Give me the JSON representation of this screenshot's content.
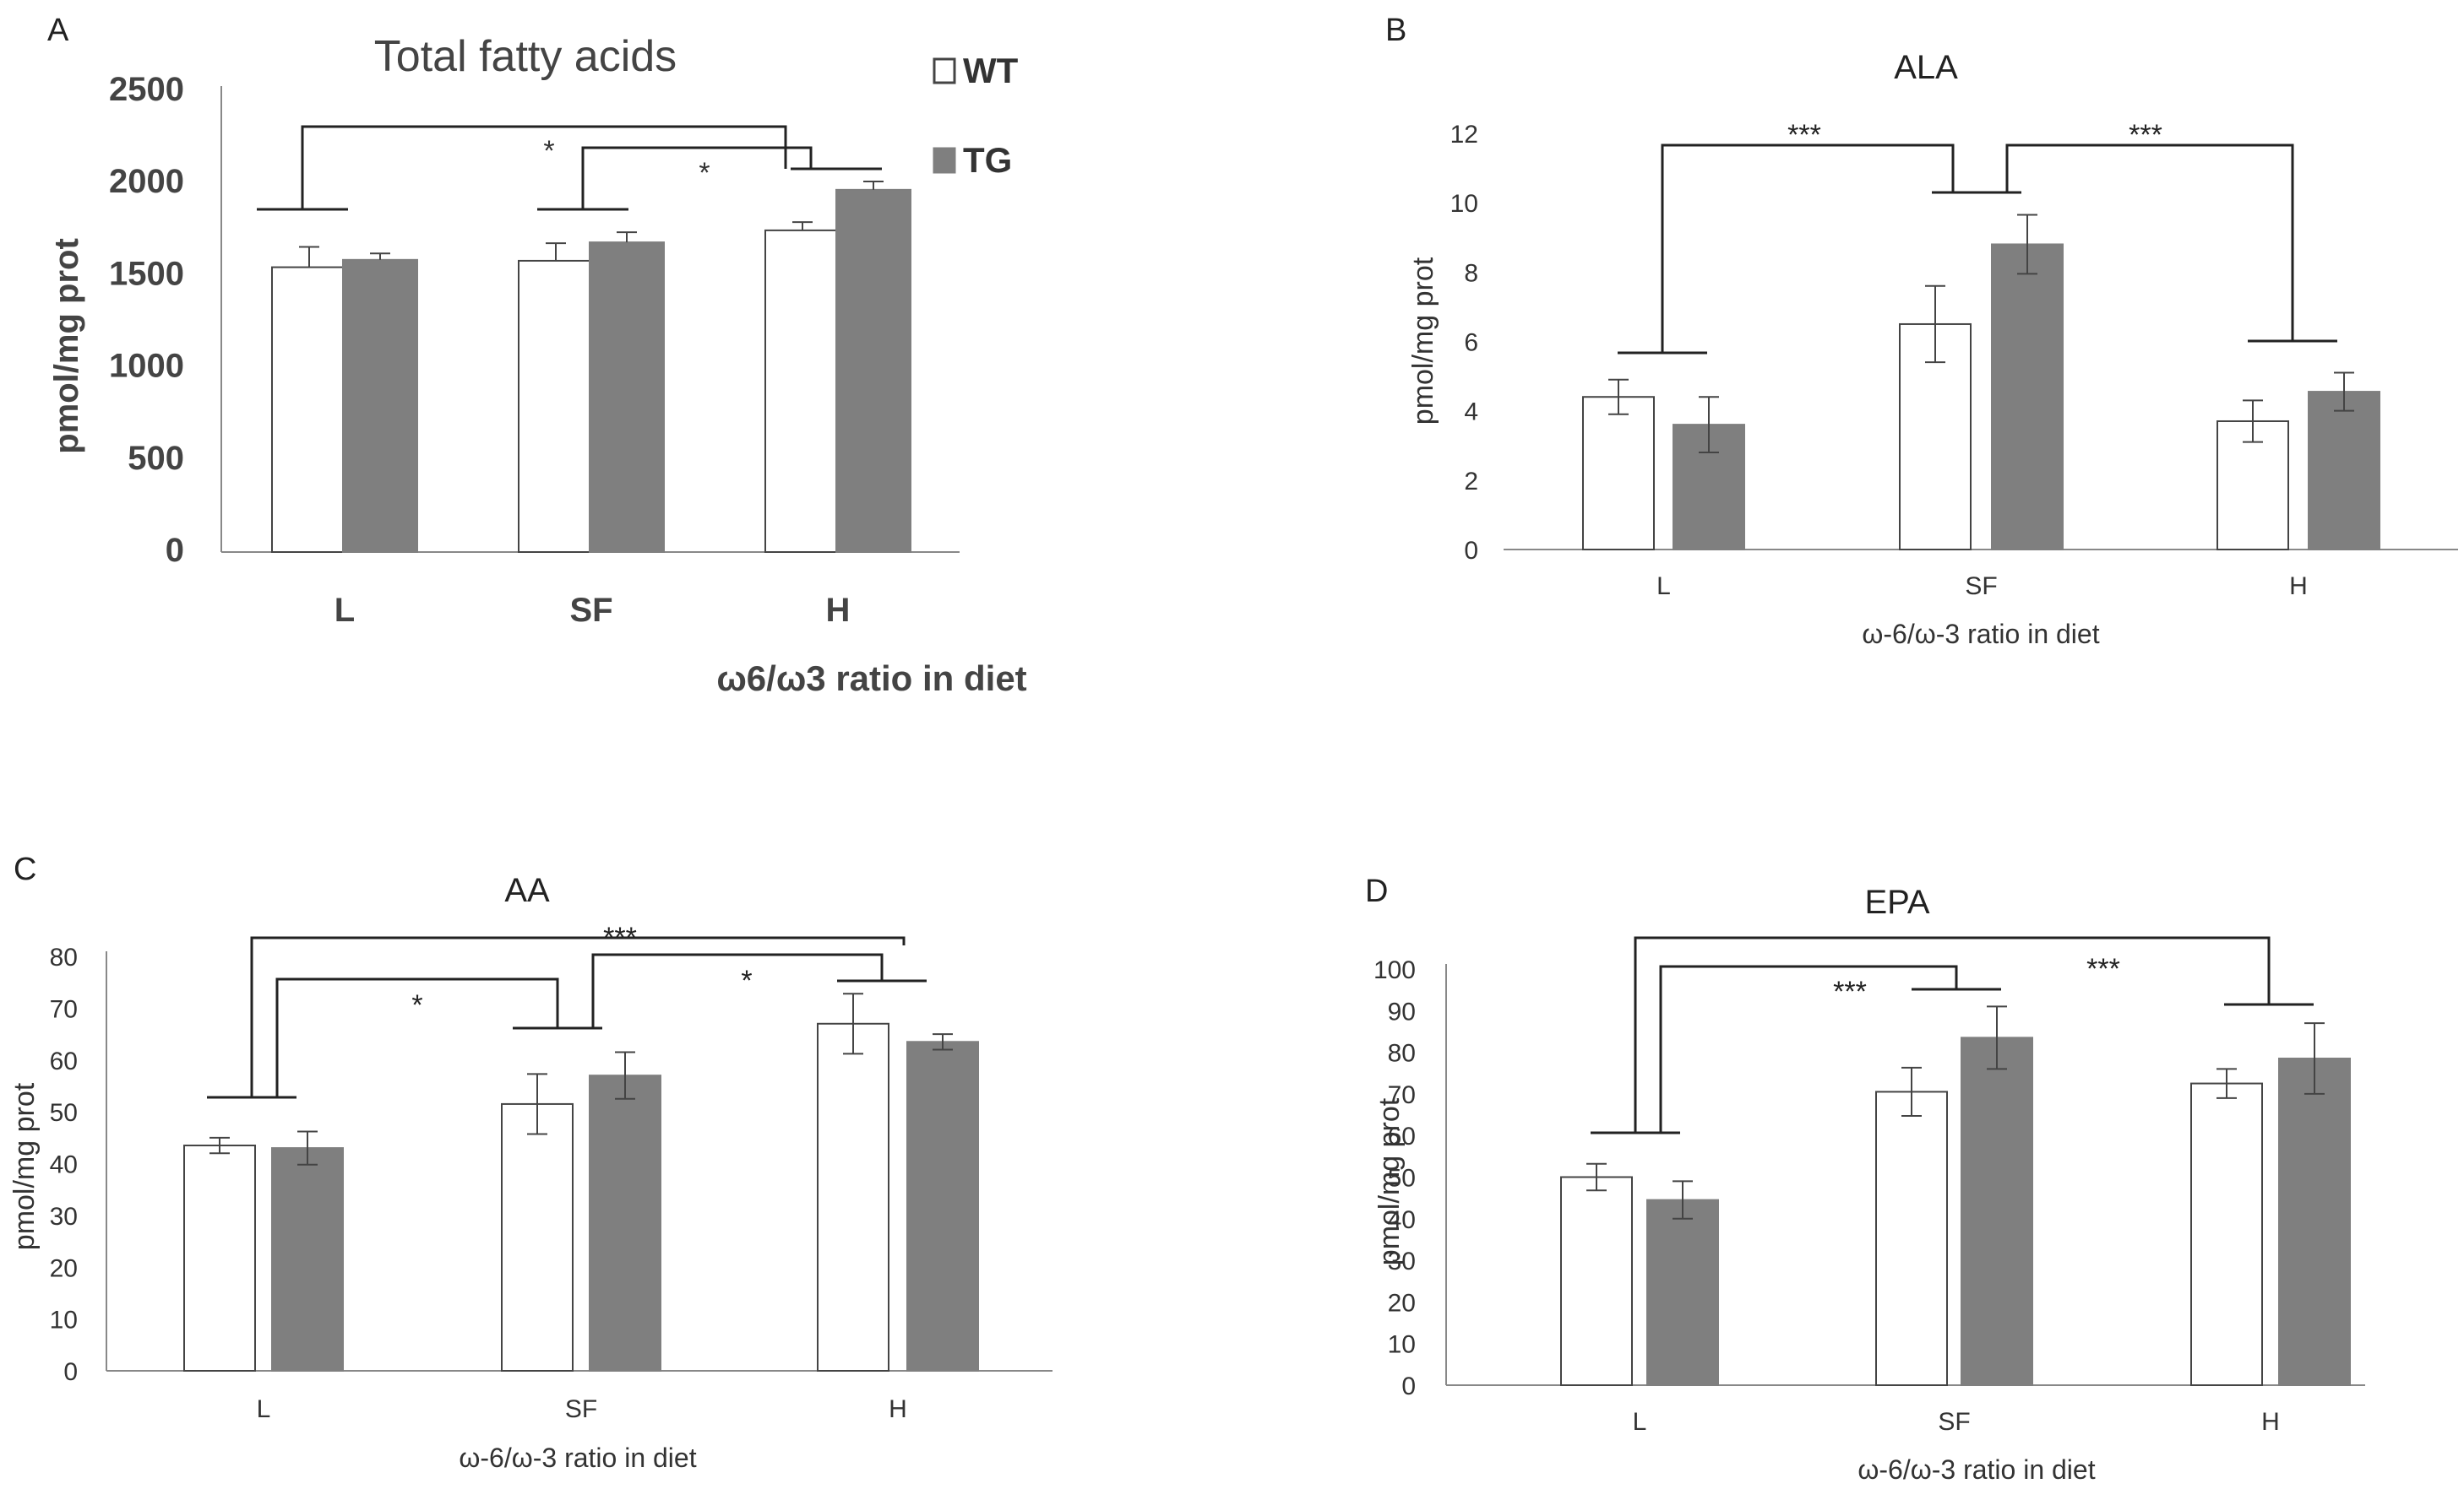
{
  "legend": [
    {
      "label": "WT",
      "color": "#ffffff"
    },
    {
      "label": "TG",
      "color": "#7f7f7f"
    }
  ],
  "colors": {
    "WT": "#ffffff",
    "TG": "#7f7f7f",
    "outline": "#444444",
    "axis": "#888888"
  },
  "chart_data": [
    {
      "panel": "A",
      "type": "bar",
      "title": "Total fatty acids",
      "xlabel": "ω6/ω3 ratio in diet",
      "ylabel": "pmol/mg prot",
      "categories": [
        "L",
        "SF",
        "H"
      ],
      "ylim": [
        0,
        2500
      ],
      "yticks": [
        0,
        500,
        1000,
        1500,
        2000,
        2500
      ],
      "series": [
        {
          "name": "WT",
          "values": [
            1545,
            1580,
            1745
          ],
          "errors": [
            110,
            95,
            45
          ]
        },
        {
          "name": "TG",
          "values": [
            1585,
            1680,
            1965
          ],
          "errors": [
            35,
            55,
            45
          ]
        }
      ],
      "significance": [
        {
          "from": "L",
          "to": "H",
          "label": "*"
        },
        {
          "from": "SF",
          "to": "H",
          "label": "*"
        }
      ]
    },
    {
      "panel": "B",
      "type": "bar",
      "title": "ALA",
      "xlabel": "ω-6/ω-3 ratio in diet",
      "ylabel": "pmol/mg prot",
      "categories": [
        "L",
        "SF",
        "H"
      ],
      "ylim": [
        0,
        12
      ],
      "yticks": [
        0,
        2,
        4,
        6,
        8,
        10,
        12
      ],
      "series": [
        {
          "name": "WT",
          "values": [
            4.4,
            6.5,
            3.7
          ],
          "errors": [
            0.5,
            1.1,
            0.6
          ]
        },
        {
          "name": "TG",
          "values": [
            3.6,
            8.8,
            4.55
          ],
          "errors": [
            0.8,
            0.85,
            0.55
          ]
        }
      ],
      "significance": [
        {
          "from": "L",
          "to": "SF",
          "label": "***"
        },
        {
          "from": "SF",
          "to": "H",
          "label": "***"
        }
      ]
    },
    {
      "panel": "C",
      "type": "bar",
      "title": "AA",
      "xlabel": "ω-6/ω-3 ratio  in diet",
      "ylabel": "pmol/mg prot",
      "categories": [
        "L",
        "SF",
        "H"
      ],
      "ylim": [
        0,
        80
      ],
      "yticks": [
        0,
        10,
        20,
        30,
        40,
        50,
        60,
        70,
        80
      ],
      "series": [
        {
          "name": "WT",
          "values": [
            43.5,
            51.5,
            67
          ],
          "errors": [
            1.5,
            5.8,
            5.8
          ]
        },
        {
          "name": "TG",
          "values": [
            43,
            57,
            63.5
          ],
          "errors": [
            3.2,
            4.5,
            1.5
          ]
        }
      ],
      "significance": [
        {
          "from": "L",
          "to": "H",
          "label": "***"
        },
        {
          "from": "L",
          "to": "SF",
          "label": "*"
        },
        {
          "from": "SF",
          "to": "H",
          "label": "*"
        }
      ]
    },
    {
      "panel": "D",
      "type": "bar",
      "title": "EPA",
      "xlabel": "ω-6/ω-3 ratio  in diet",
      "ylabel": "pmol/mg prot",
      "categories": [
        "L",
        "SF",
        "H"
      ],
      "ylim": [
        0,
        100
      ],
      "yticks": [
        0,
        10,
        20,
        30,
        40,
        50,
        60,
        70,
        80,
        90,
        100
      ],
      "series": [
        {
          "name": "WT",
          "values": [
            50,
            70.5,
            72.5
          ],
          "errors": [
            3.2,
            5.8,
            3.5
          ]
        },
        {
          "name": "TG",
          "values": [
            44.5,
            83.5,
            78.5
          ],
          "errors": [
            4.5,
            7.5,
            8.5
          ]
        }
      ],
      "significance": [
        {
          "from": "L",
          "to": "SF",
          "label": "***"
        },
        {
          "from": "L",
          "to": "H",
          "label": "***"
        }
      ]
    }
  ]
}
